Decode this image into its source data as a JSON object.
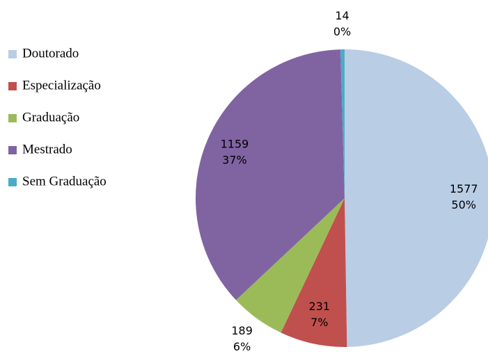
{
  "chart_data": {
    "type": "pie",
    "categories": [
      "Doutorado",
      "Especialização",
      "Graduação",
      "Mestrado",
      "Sem Graduação"
    ],
    "values": [
      1577,
      231,
      189,
      1159,
      14
    ],
    "percents": [
      50,
      7,
      6,
      37,
      0
    ],
    "percent_labels": [
      "50%",
      "7%",
      "6%",
      "37%",
      "0%"
    ],
    "colors": [
      "#b9cde5",
      "#c0504d",
      "#9bbb59",
      "#8064a2",
      "#4bacc6"
    ],
    "legend": "left"
  }
}
